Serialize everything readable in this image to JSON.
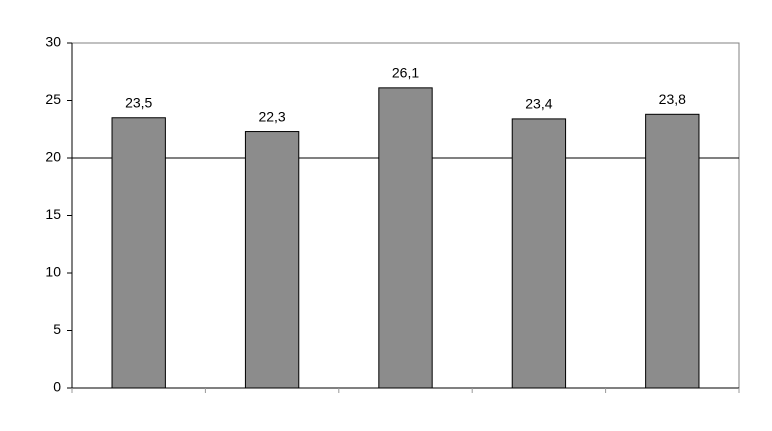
{
  "chart_data": {
    "type": "bar",
    "categories": [
      null,
      null,
      null,
      null,
      null
    ],
    "values": [
      23.5,
      22.3,
      26.1,
      23.4,
      23.8
    ],
    "value_labels": [
      "23,5",
      "22,3",
      "26,1",
      "23,4",
      "23,8"
    ],
    "color": "#8c8c8c",
    "ylim": [
      0,
      30
    ],
    "yticks": [
      0,
      5,
      10,
      15,
      20,
      25,
      30
    ],
    "reference_line": 20
  }
}
